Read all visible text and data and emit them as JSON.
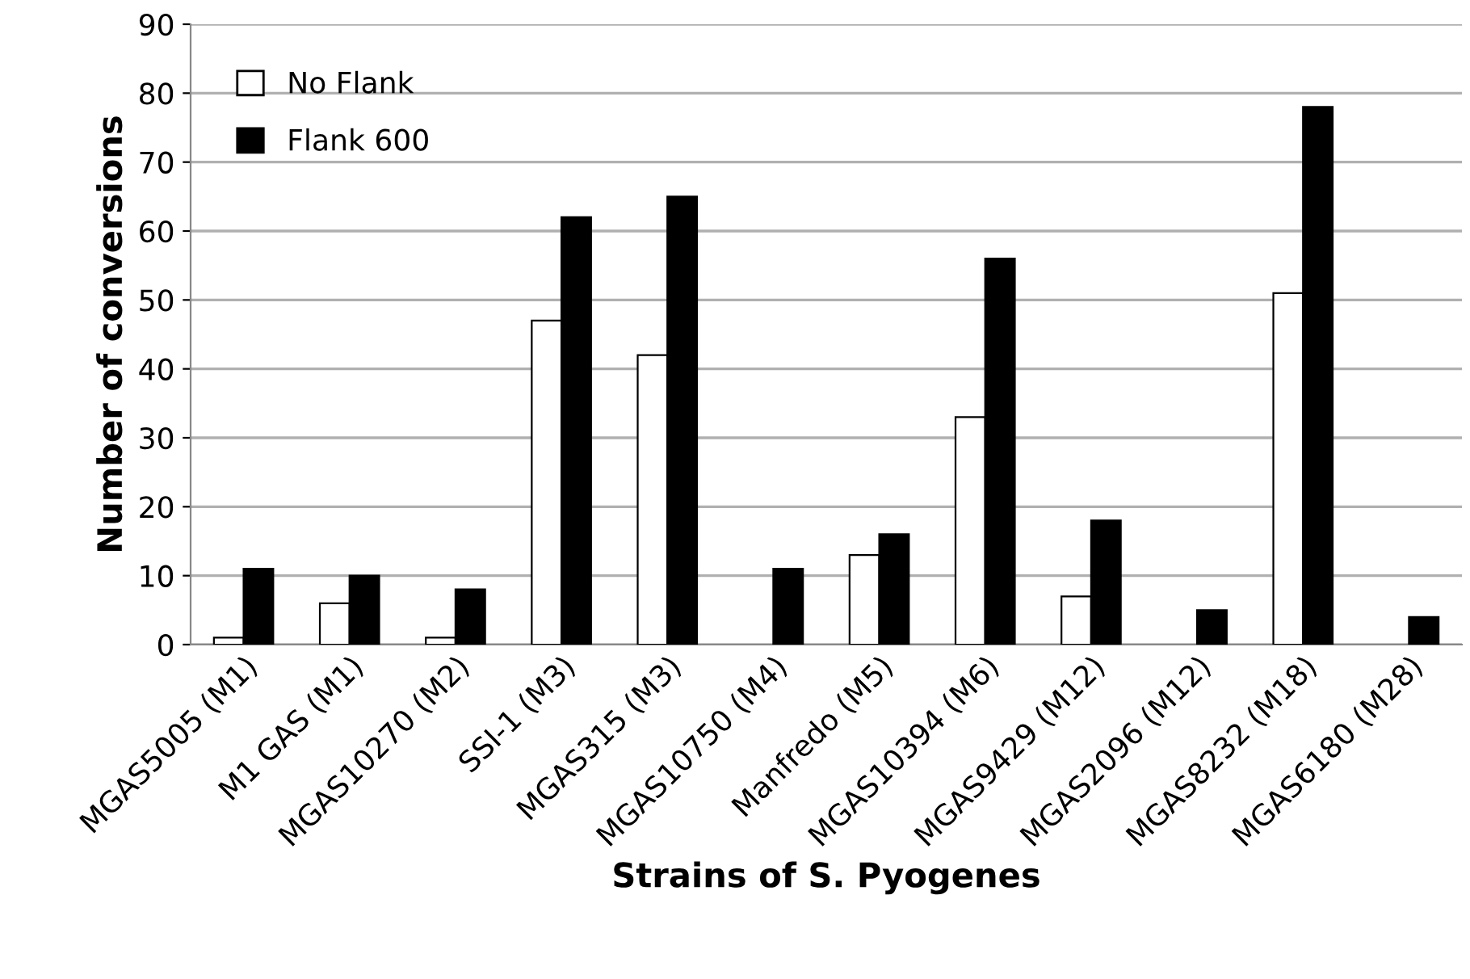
{
  "chart_data": {
    "type": "bar",
    "xlabel": "Strains of S. Pyogenes",
    "ylabel": "Number of conversions",
    "categories": [
      "MGAS5005 (M1)",
      "M1 GAS (M1)",
      "MGAS10270 (M2)",
      "SSI-1 (M3)",
      "MGAS315 (M3)",
      "MGAS10750 (M4)",
      "Manfredo (M5)",
      "MGAS10394 (M6)",
      "MGAS9429 (M12)",
      "MGAS2096 (M12)",
      "MGAS8232 (M18)",
      "MGAS6180 (M28)"
    ],
    "series": [
      {
        "name": "No Flank",
        "color": "#ffffff",
        "values": [
          1,
          6,
          1,
          47,
          42,
          null,
          13,
          33,
          7,
          null,
          51,
          null
        ]
      },
      {
        "name": "Flank 600",
        "color": "#000000",
        "values": [
          11,
          10,
          8,
          62,
          65,
          11,
          16,
          56,
          18,
          5,
          78,
          4
        ]
      }
    ],
    "ylim": [
      0,
      90
    ],
    "yticks": [
      0,
      10,
      20,
      30,
      40,
      50,
      60,
      70,
      80,
      90
    ],
    "grid": "y",
    "legend": "top left"
  }
}
